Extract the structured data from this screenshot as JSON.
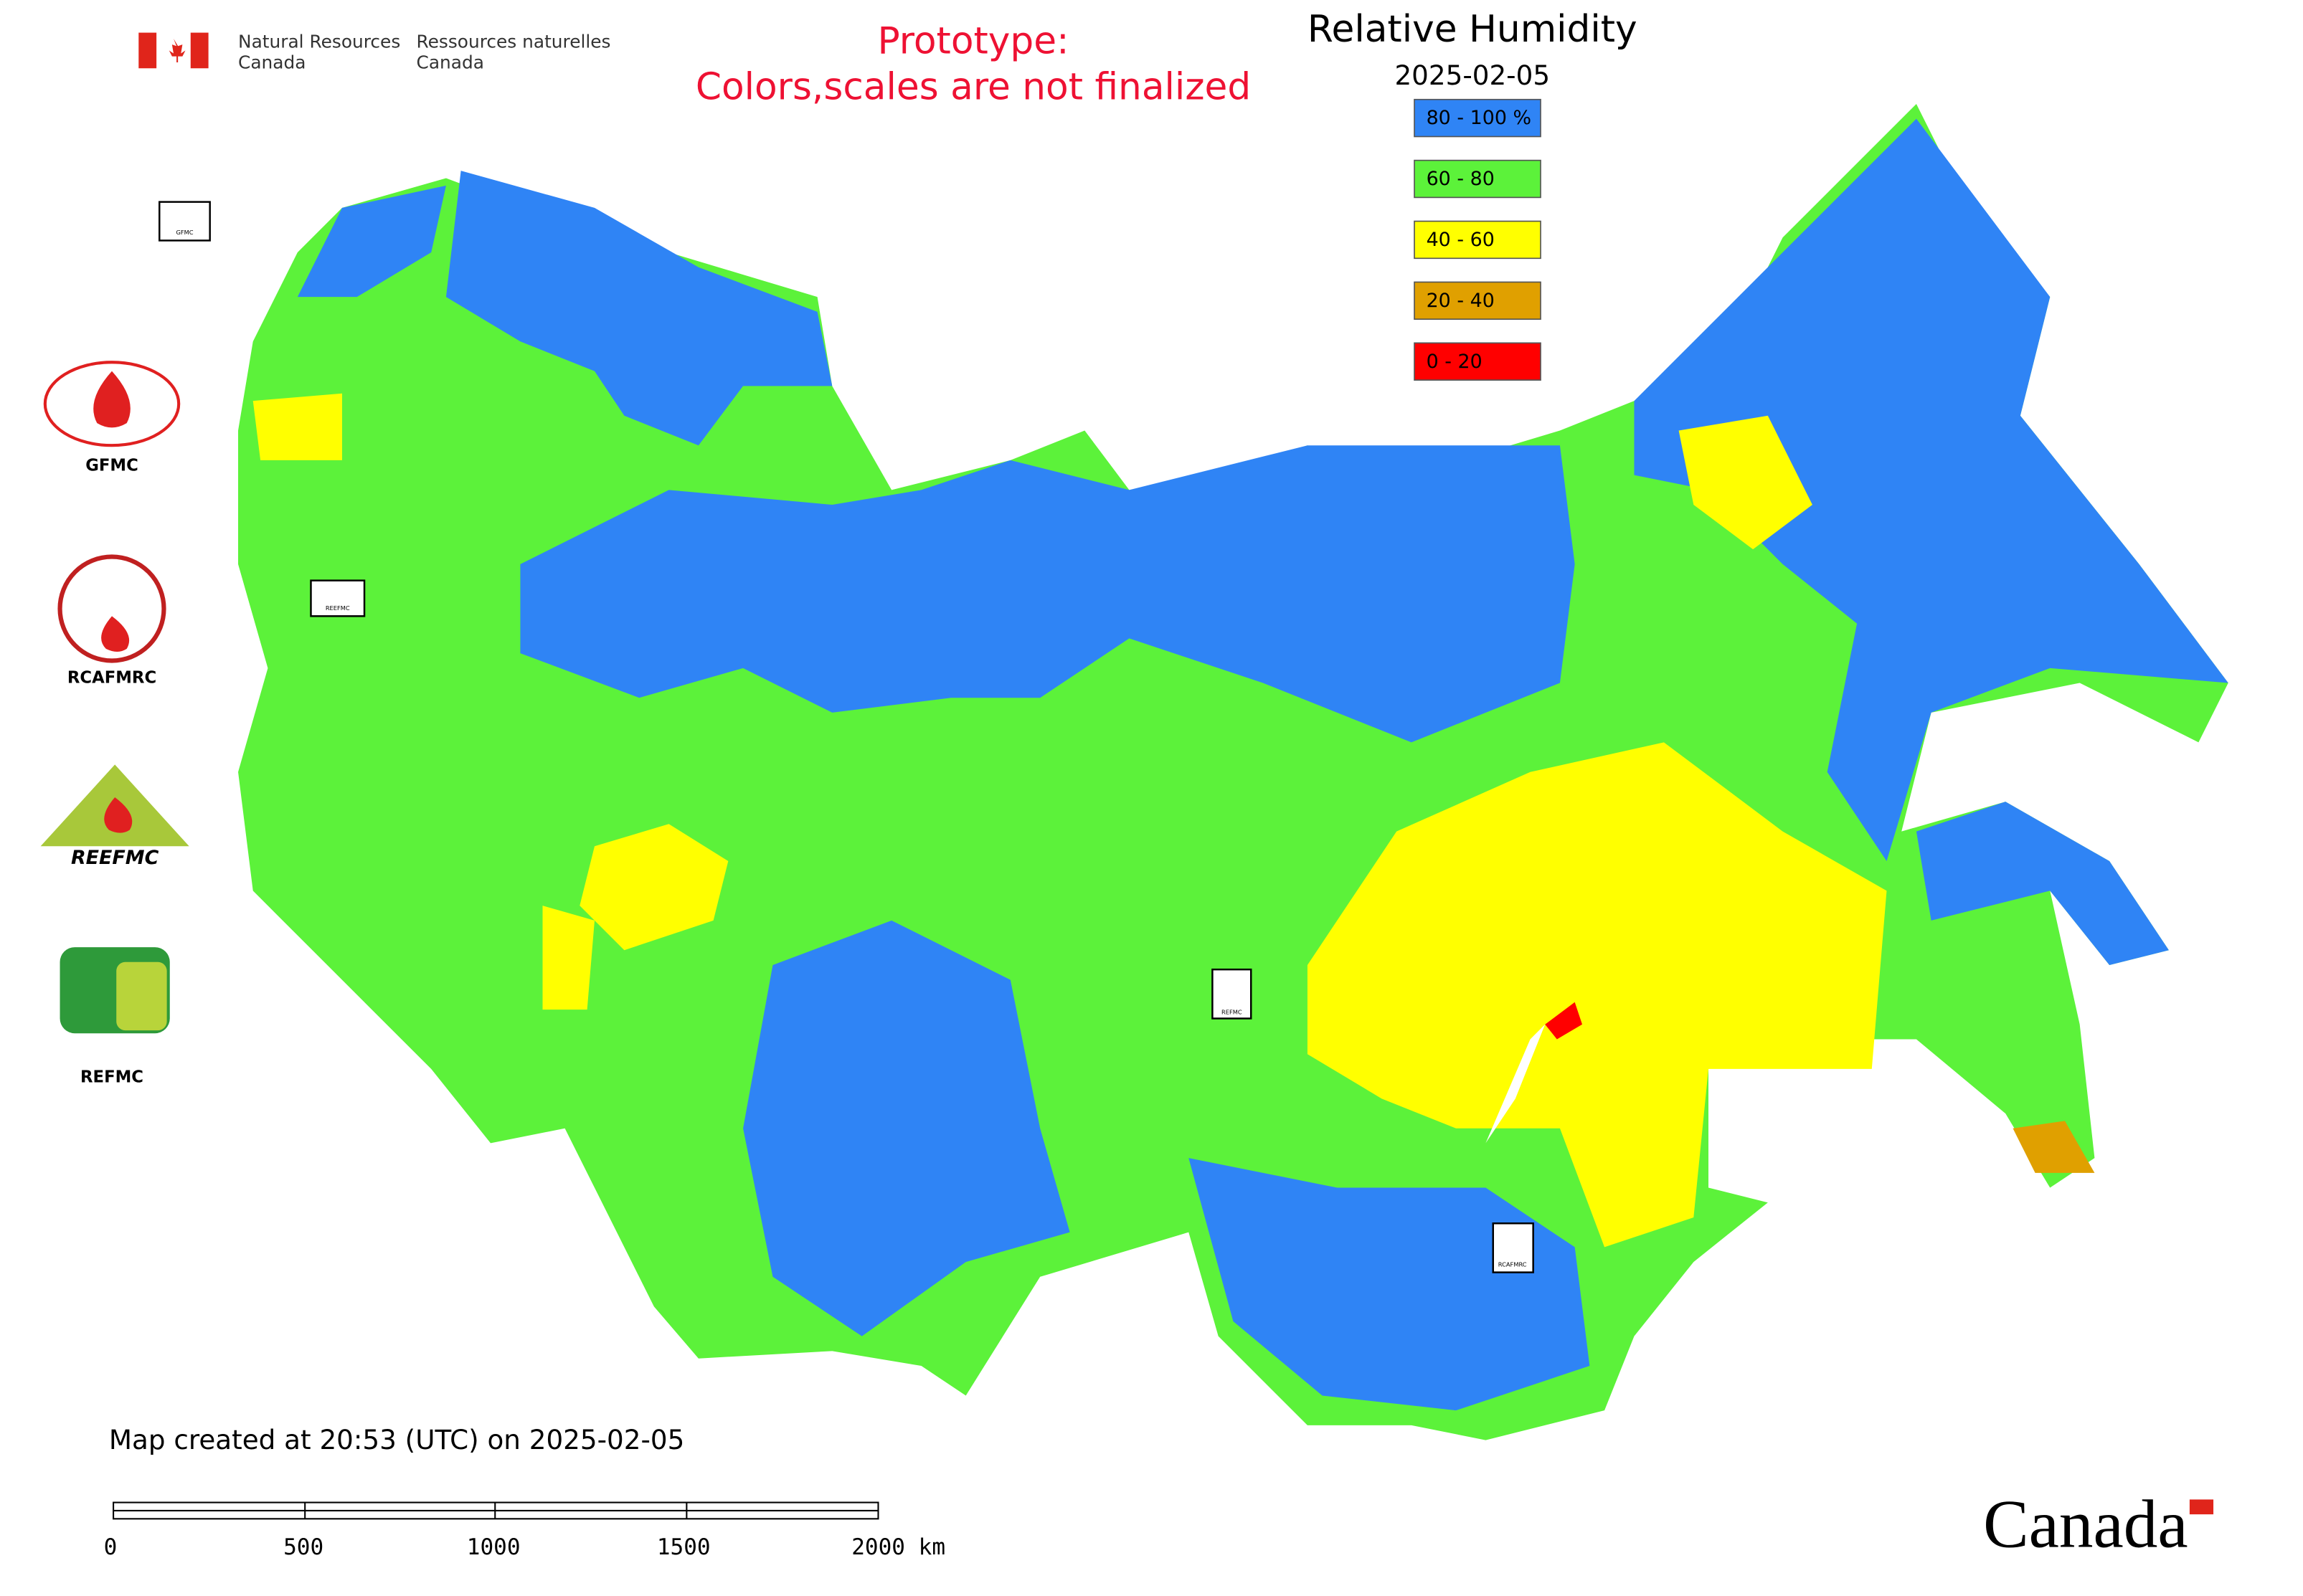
{
  "header": {
    "agency_en": [
      "Natural Resources",
      "Canada"
    ],
    "agency_fr": [
      "Ressources naturelles",
      "Canada"
    ],
    "notice": [
      "Prototype:",
      "Colors,scales are not finalized"
    ],
    "title": "Relative Humidity",
    "date": "2025-02-05"
  },
  "legend": {
    "items": [
      {
        "label": "80 - 100 %",
        "color": "#2f84f5"
      },
      {
        "label": "60 - 80",
        "color": "#5cf23a"
      },
      {
        "label": "40 - 60",
        "color": "#ffff00"
      },
      {
        "label": "20 - 40",
        "color": "#e0a000"
      },
      {
        "label": "0 - 20",
        "color": "#ff0000"
      }
    ]
  },
  "side_logos": {
    "gfmc": "GFMC",
    "rcafmrc": "RCAFMRC",
    "reefmc": "REEFMC",
    "refmc": "REFMC"
  },
  "map_markers": [
    "GFMC",
    "REEFMC",
    "REFMC",
    "RCAFMRC"
  ],
  "footer": {
    "created": "Map created at 20:53 (UTC) on 2025-02-05",
    "scale_labels": [
      "0",
      "500",
      "1000",
      "1500",
      "2000 km"
    ],
    "wordmark": "Canada"
  }
}
